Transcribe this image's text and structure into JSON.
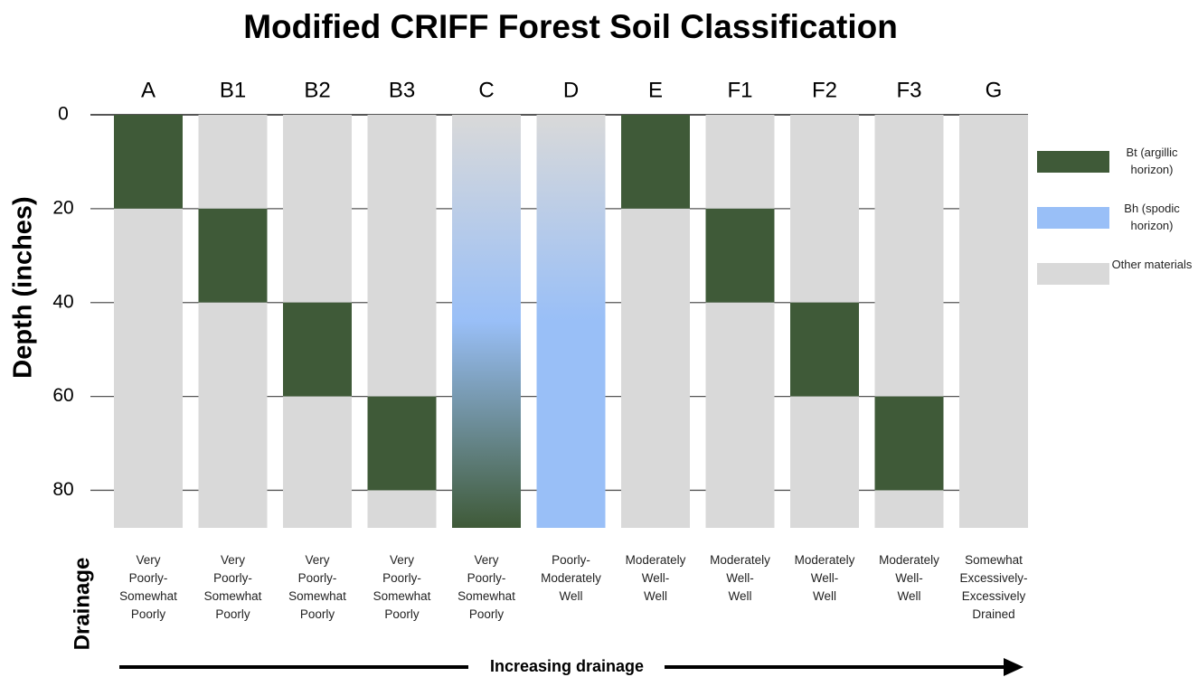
{
  "chart_data": {
    "type": "stacked_column",
    "title": "Modified CRIFF Forest Soil Classification",
    "y_label": "Depth (inches)",
    "row_label": "Drainage",
    "arrow_label": "Increasing drainage",
    "categories": [
      "A",
      "B1",
      "B2",
      "B3",
      "C",
      "D",
      "E",
      "F1",
      "F2",
      "F3",
      "G"
    ],
    "drainage": [
      "Very\nPoorly-\nSomewhat\nPoorly",
      "Very\nPoorly-\nSomewhat\nPoorly",
      "Very\nPoorly-\nSomewhat\nPoorly",
      "Very\nPoorly-\nSomewhat\nPoorly",
      "Very\nPoorly-\nSomewhat\nPoorly",
      "Poorly-\nModerately\nWell",
      "Moderately\nWell-\nWell",
      "Moderately\nWell-\nWell",
      "Moderately\nWell-\nWell",
      "Moderately\nWell-\nWell",
      "Somewhat\nExcessively-\nExcessively\nDrained"
    ],
    "series": [
      {
        "name": "Other materials",
        "color": "#d9d9d9",
        "values": [
          0,
          20,
          40,
          60,
          0,
          0,
          0,
          20,
          40,
          60,
          88
        ]
      },
      {
        "name": "Bt (argillic horizon)",
        "color": "#3f5a38",
        "values": [
          20,
          20,
          20,
          20,
          0,
          0,
          20,
          20,
          20,
          20,
          0
        ]
      },
      {
        "name": "Bh (spodic horizon)",
        "color": "#99bff7",
        "values": [
          0,
          0,
          0,
          0,
          88,
          88,
          0,
          0,
          0,
          0,
          0
        ]
      },
      {
        "name": "Other materials",
        "color": "#d9d9d9",
        "values": [
          68,
          48,
          28,
          8,
          0,
          0,
          68,
          48,
          28,
          8,
          0
        ]
      }
    ],
    "gradients": {
      "C": [
        "#d9d9d9",
        "#99bff7",
        "#3f5a38"
      ],
      "D": [
        "#d9d9d9",
        "#99bff7",
        "#99bff7"
      ]
    },
    "ylim": [
      0,
      88
    ],
    "yticks": [
      0,
      20,
      40,
      60,
      80
    ],
    "y_inverted": true,
    "grid": true,
    "legend": "right"
  }
}
